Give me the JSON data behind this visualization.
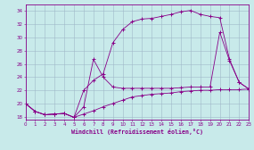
{
  "background_color": "#c8eaea",
  "grid_color": "#a0b8c8",
  "line_color": "#880088",
  "xlabel": "Windchill (Refroidissement éolien,°C)",
  "xlim": [
    0,
    23
  ],
  "ylim": [
    17.5,
    35.0
  ],
  "xticks": [
    0,
    1,
    2,
    3,
    4,
    5,
    6,
    7,
    8,
    9,
    10,
    11,
    12,
    13,
    14,
    15,
    16,
    17,
    18,
    19,
    20,
    21,
    22,
    23
  ],
  "yticks": [
    18,
    20,
    22,
    24,
    26,
    28,
    30,
    32,
    34
  ],
  "series1_x": [
    0,
    1,
    2,
    3,
    4,
    5,
    6,
    7,
    8,
    9,
    10,
    11,
    12,
    13,
    14,
    15,
    16,
    17,
    18,
    19,
    20,
    21,
    22,
    23
  ],
  "series1_y": [
    20.0,
    18.8,
    18.3,
    18.4,
    18.5,
    17.9,
    18.4,
    18.9,
    19.5,
    20.0,
    20.5,
    21.0,
    21.2,
    21.4,
    21.5,
    21.6,
    21.8,
    21.9,
    22.0,
    22.0,
    22.1,
    22.1,
    22.1,
    22.2
  ],
  "series2_x": [
    0,
    1,
    2,
    3,
    4,
    5,
    6,
    7,
    8,
    9,
    10,
    11,
    12,
    13,
    14,
    15,
    16,
    17,
    18,
    19,
    20,
    21,
    22,
    23
  ],
  "series2_y": [
    20.0,
    18.8,
    18.3,
    18.4,
    18.5,
    17.9,
    19.5,
    26.7,
    24.0,
    22.5,
    22.3,
    22.3,
    22.3,
    22.3,
    22.3,
    22.3,
    22.4,
    22.5,
    22.5,
    22.5,
    30.8,
    26.5,
    23.2,
    22.2
  ],
  "series3_x": [
    0,
    1,
    2,
    3,
    4,
    5,
    6,
    7,
    8,
    9,
    10,
    11,
    12,
    13,
    14,
    15,
    16,
    17,
    18,
    19,
    20,
    21,
    22,
    23
  ],
  "series3_y": [
    20.0,
    18.8,
    18.3,
    18.4,
    18.5,
    17.9,
    22.0,
    23.5,
    24.5,
    29.2,
    31.2,
    32.4,
    32.8,
    32.9,
    33.2,
    33.5,
    33.9,
    34.1,
    33.5,
    33.2,
    33.0,
    26.7,
    23.2,
    22.2
  ]
}
